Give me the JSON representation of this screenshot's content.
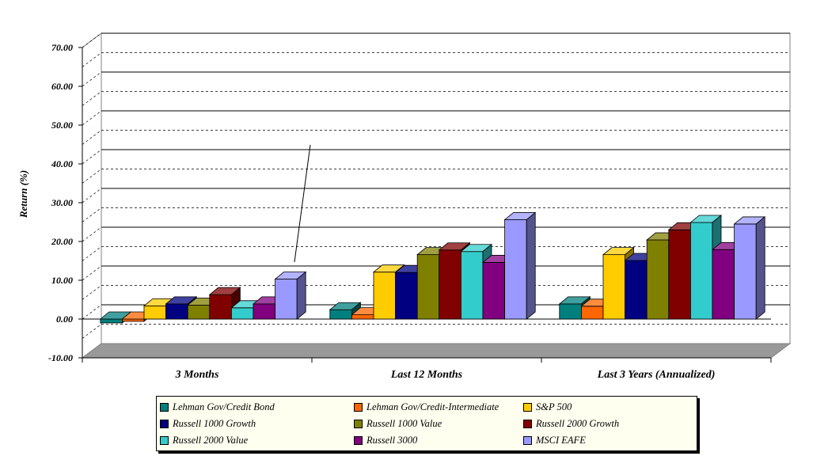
{
  "chart_data": {
    "type": "bar",
    "ylabel": "Return (%)",
    "ylim": [
      -10,
      70
    ],
    "y_ticks": [
      "70.00",
      "60.00",
      "50.00",
      "40.00",
      "30.00",
      "20.00",
      "10.00",
      "0.00",
      "-10.00"
    ],
    "y_tick_values": [
      70,
      60,
      50,
      40,
      30,
      20,
      10,
      0,
      -10
    ],
    "categories": [
      "3 Months",
      "Last 12 Months",
      "Last 3 Years (Annualized)"
    ],
    "grid": true,
    "legend_position": "bottom",
    "series": [
      {
        "name": "Lehman Gov/Credit Bond",
        "color": "#007f7f",
        "values": [
          -1.0,
          2.4,
          3.9
        ]
      },
      {
        "name": "Lehman Gov/Credit-Intermediate",
        "color": "#ff6600",
        "values": [
          -0.6,
          1.1,
          3.3
        ]
      },
      {
        "name": "S&P 500",
        "color": "#ffcc00",
        "values": [
          3.4,
          12.1,
          16.6
        ]
      },
      {
        "name": "Russell 1000 Growth",
        "color": "#000080",
        "values": [
          3.9,
          12.0,
          15.1
        ]
      },
      {
        "name": "Russell 1000 Value",
        "color": "#808000",
        "values": [
          3.6,
          16.6,
          20.4
        ]
      },
      {
        "name": "Russell 2000 Growth",
        "color": "#800000",
        "values": [
          6.3,
          17.8,
          23.0
        ]
      },
      {
        "name": "Russell 2000 Value",
        "color": "#33cccc",
        "values": [
          2.9,
          17.4,
          24.9
        ]
      },
      {
        "name": "Russell 3000",
        "color": "#800080",
        "values": [
          3.9,
          14.6,
          17.9
        ]
      },
      {
        "name": "MSCI EAFE",
        "color": "#9999ff",
        "values": [
          10.3,
          25.6,
          24.5
        ]
      }
    ]
  },
  "legend": {
    "items": [
      {
        "label": "Lehman Gov/Credit Bond",
        "color": "#007f7f"
      },
      {
        "label": "Lehman Gov/Credit-Intermediate",
        "color": "#ff6600"
      },
      {
        "label": "S&P 500",
        "color": "#ffcc00"
      },
      {
        "label": "Russell 1000 Growth",
        "color": "#000080"
      },
      {
        "label": "Russell 1000 Value",
        "color": "#808000"
      },
      {
        "label": "Russell 2000 Growth",
        "color": "#800000"
      },
      {
        "label": "Russell 2000 Value",
        "color": "#33cccc"
      },
      {
        "label": "Russell 3000",
        "color": "#800080"
      },
      {
        "label": "MSCI EAFE",
        "color": "#9999ff"
      }
    ]
  }
}
